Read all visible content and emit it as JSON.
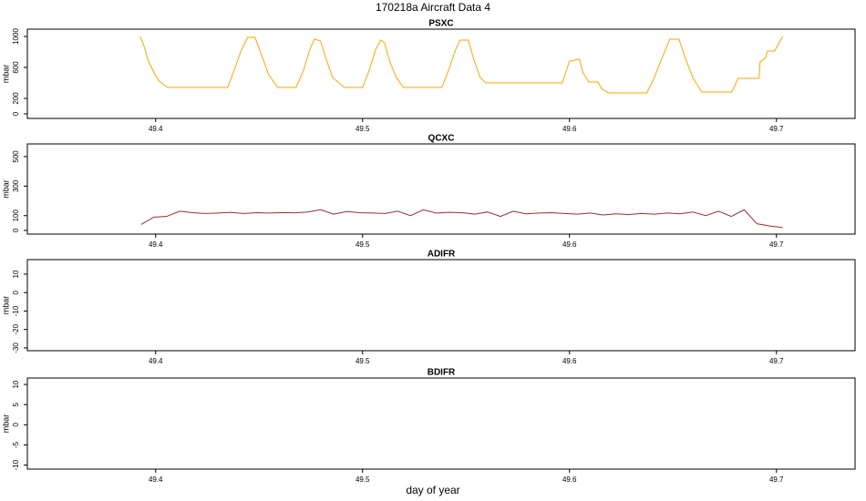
{
  "title": "170218a   Aircraft Data 4",
  "xlabel": "day of year",
  "chart_data": [
    {
      "type": "line",
      "title": "PSXC",
      "ylabel": "mbar",
      "xlim": [
        49.338,
        49.738
      ],
      "ylim": [
        -59,
        1094
      ],
      "xticks": [
        49.4,
        49.5,
        49.6,
        49.7
      ],
      "yticks": [
        0,
        200,
        600,
        1000
      ],
      "x": [
        49.3925,
        49.3943,
        49.3965,
        49.3982,
        49.4004,
        49.4022,
        49.4057,
        49.4348,
        49.4383,
        49.4414,
        49.4445,
        49.448,
        49.4511,
        49.4546,
        49.459,
        49.4678,
        49.4714,
        49.4744,
        49.4767,
        49.4797,
        49.4824,
        49.4855,
        49.4912,
        49.5,
        49.5031,
        49.5062,
        49.5088,
        49.5106,
        49.5132,
        49.5163,
        49.5198,
        49.5383,
        49.5419,
        49.5449,
        49.5471,
        49.5511,
        49.5537,
        49.5568,
        49.5595,
        49.5965,
        49.6,
        49.6048,
        49.6066,
        49.6093,
        49.6137,
        49.6154,
        49.6189,
        49.6374,
        49.641,
        49.6445,
        49.6485,
        49.6529,
        49.6559,
        49.6595,
        49.6639,
        49.6784,
        49.6815,
        49.6837,
        49.6916,
        49.6921,
        49.6947,
        49.6956,
        49.6991,
        49.703
      ],
      "series": [
        {
          "color": "#ffa500",
          "values": [
            1000,
            882,
            682,
            588,
            471,
            412,
            341,
            341,
            588,
            824,
            988,
            988,
            765,
            506,
            341,
            341,
            553,
            824,
            965,
            941,
            706,
            471,
            341,
            341,
            553,
            824,
            953,
            918,
            671,
            471,
            341,
            341,
            588,
            824,
            953,
            953,
            706,
            471,
            400,
            400,
            682,
            706,
            529,
            412,
            412,
            329,
            271,
            271,
            471,
            706,
            965,
            965,
            729,
            471,
            282,
            282,
            459,
            459,
            459,
            671,
            718,
            812,
            812,
            1000
          ]
        }
      ]
    },
    {
      "type": "line",
      "title": "QCXC",
      "ylabel": "mbar",
      "xlim": [
        49.338,
        49.738
      ],
      "ylim": [
        -25,
        586
      ],
      "xticks": [
        49.4,
        49.5,
        49.6,
        49.7
      ],
      "yticks": [
        0,
        100,
        300,
        500
      ],
      "x": [
        49.393,
        49.3992,
        49.4054,
        49.4116,
        49.4178,
        49.424,
        49.4302,
        49.4364,
        49.4426,
        49.4488,
        49.455,
        49.4612,
        49.4674,
        49.4736,
        49.4798,
        49.486,
        49.4922,
        49.4984,
        49.5046,
        49.5108,
        49.517,
        49.5232,
        49.5294,
        49.5356,
        49.5418,
        49.548,
        49.5542,
        49.5604,
        49.5666,
        49.5728,
        49.579,
        49.5852,
        49.5914,
        49.5976,
        49.6038,
        49.61,
        49.6162,
        49.6224,
        49.6286,
        49.6348,
        49.641,
        49.6472,
        49.6534,
        49.6596,
        49.6658,
        49.672,
        49.6782,
        49.6844,
        49.6906,
        49.6968,
        49.703
      ],
      "series": [
        {
          "color": "#a52a2a",
          "values": [
            40,
            90,
            95,
            130,
            120,
            115,
            118,
            122,
            115,
            120,
            118,
            121,
            119,
            125,
            140,
            110,
            128,
            120,
            118,
            115,
            130,
            100,
            140,
            118,
            122,
            120,
            110,
            125,
            95,
            130,
            112,
            118,
            120,
            115,
            110,
            118,
            105,
            112,
            108,
            115,
            110,
            118,
            112,
            125,
            100,
            130,
            95,
            140,
            45,
            30,
            20
          ]
        }
      ]
    },
    {
      "type": "line",
      "title": "ADIFR",
      "ylabel": "mbar",
      "xlim": [
        49.338,
        49.738
      ],
      "ylim": [
        -31.5,
        17.9
      ],
      "xticks": [
        49.4,
        49.5,
        49.6,
        49.7
      ],
      "yticks": [
        -30,
        -20,
        -10,
        0,
        10
      ]
    },
    {
      "type": "line",
      "title": "BDIFR",
      "ylabel": "mbar",
      "xlim": [
        49.338,
        49.738
      ],
      "ylim": [
        -11,
        11.6
      ],
      "xticks": [
        49.4,
        49.5,
        49.6,
        49.7
      ],
      "yticks": [
        -10,
        -5,
        0,
        5,
        10
      ]
    }
  ]
}
